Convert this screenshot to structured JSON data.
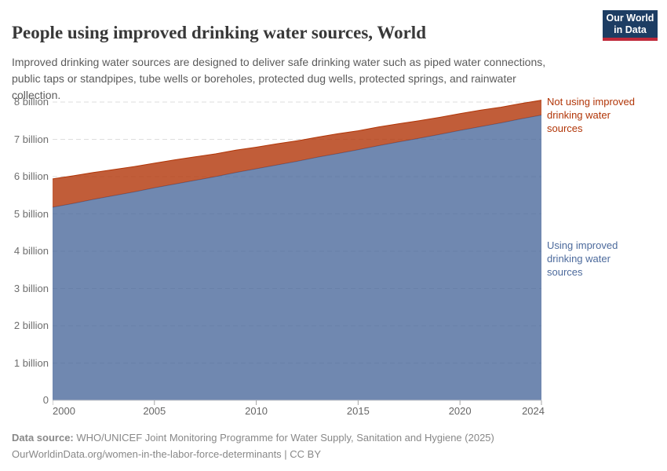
{
  "header": {
    "title": "People using improved drinking water sources, World",
    "subtitle": "Improved drinking water sources are designed to deliver safe drinking water such as piped water connections, public taps or standpipes, tube wells or boreholes, protected dug wells, protected springs, and rainwater collection.",
    "logo": {
      "line1": "Our World",
      "line2": "in Data",
      "bg_color": "#1d3d63",
      "stripe_color": "#c0293a"
    }
  },
  "chart_data": {
    "type": "area",
    "stacked": true,
    "title": "People using improved drinking water sources, World",
    "xlabel": "",
    "ylabel": "",
    "grid": "horizontal-dashed",
    "legend_position": "right-edge-entity-labels",
    "xlim": [
      2000,
      2024
    ],
    "ylim": [
      0,
      8.4
    ],
    "x": [
      2000,
      2001,
      2002,
      2003,
      2004,
      2005,
      2006,
      2007,
      2008,
      2009,
      2010,
      2011,
      2012,
      2013,
      2014,
      2015,
      2016,
      2017,
      2018,
      2019,
      2020,
      2021,
      2022,
      2023,
      2024
    ],
    "series": [
      {
        "name": "Using improved drinking water sources",
        "color": "#4c6a9c",
        "values": [
          5.18,
          5.28,
          5.39,
          5.49,
          5.59,
          5.7,
          5.8,
          5.9,
          6.0,
          6.11,
          6.21,
          6.31,
          6.41,
          6.52,
          6.62,
          6.72,
          6.83,
          6.93,
          7.03,
          7.13,
          7.24,
          7.34,
          7.44,
          7.55,
          7.65
        ]
      },
      {
        "name": "Not using improved drinking water sources",
        "color": "#b13507",
        "values": [
          0.76,
          0.74,
          0.72,
          0.7,
          0.68,
          0.66,
          0.65,
          0.63,
          0.61,
          0.6,
          0.58,
          0.57,
          0.55,
          0.54,
          0.53,
          0.51,
          0.5,
          0.49,
          0.47,
          0.46,
          0.45,
          0.44,
          0.42,
          0.41,
          0.4
        ]
      }
    ],
    "yticks": [
      {
        "value": 8,
        "label": "8 billion"
      },
      {
        "value": 7,
        "label": "7 billion"
      },
      {
        "value": 6,
        "label": "6 billion"
      },
      {
        "value": 5,
        "label": "5 billion"
      },
      {
        "value": 4,
        "label": "4 billion"
      },
      {
        "value": 3,
        "label": "3 billion"
      },
      {
        "value": 2,
        "label": "2 billion"
      },
      {
        "value": 1,
        "label": "1 billion"
      },
      {
        "value": 0,
        "label": "0"
      }
    ],
    "xticks": [
      {
        "value": 2000,
        "label": "2000"
      },
      {
        "value": 2005,
        "label": "2005"
      },
      {
        "value": 2010,
        "label": "2010"
      },
      {
        "value": 2015,
        "label": "2015"
      },
      {
        "value": 2020,
        "label": "2020"
      },
      {
        "value": 2024,
        "label": "2024"
      }
    ],
    "style": {
      "fill_opacity": 0.8,
      "gridline_color": "#dddddd",
      "baseline_color": "#cccccc",
      "tick_mark_color": "#a5a5a5",
      "axis_label_color": "#6e6e6e"
    }
  },
  "footer": {
    "source_label": "Data source:",
    "source_text": " WHO/UNICEF Joint Monitoring Programme for Water Supply, Sanitation and Hygiene (2025)",
    "citation_line": "OurWorldinData.org/women-in-the-labor-force-determinants | CC BY"
  }
}
